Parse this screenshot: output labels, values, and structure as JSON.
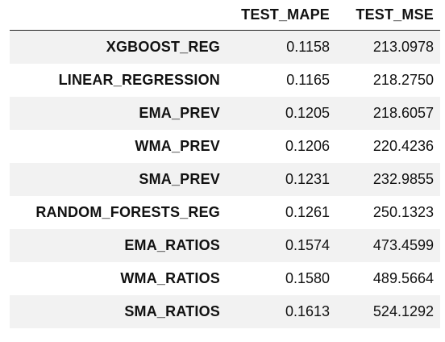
{
  "chart_data": {
    "type": "table",
    "columns": [
      "",
      "TEST_MAPE",
      "TEST_MSE"
    ],
    "rows": [
      {
        "label": "XGBOOST_REG",
        "test_mape": "0.1158",
        "test_mse": "213.0978"
      },
      {
        "label": "LINEAR_REGRESSION",
        "test_mape": "0.1165",
        "test_mse": "218.2750"
      },
      {
        "label": "EMA_PREV",
        "test_mape": "0.1205",
        "test_mse": "218.6057"
      },
      {
        "label": "WMA_PREV",
        "test_mape": "0.1206",
        "test_mse": "220.4236"
      },
      {
        "label": "SMA_PREV",
        "test_mape": "0.1231",
        "test_mse": "232.9855"
      },
      {
        "label": "RANDOM_FORESTS_REG",
        "test_mape": "0.1261",
        "test_mse": "250.1323"
      },
      {
        "label": "EMA_RATIOS",
        "test_mape": "0.1574",
        "test_mse": "473.4599"
      },
      {
        "label": "WMA_RATIOS",
        "test_mape": "0.1580",
        "test_mse": "489.5664"
      },
      {
        "label": "SMA_RATIOS",
        "test_mape": "0.1613",
        "test_mse": "524.1292"
      }
    ]
  },
  "colors": {
    "stripe": "#f2f2f2",
    "rule": "#222222",
    "text": "#111111"
  }
}
